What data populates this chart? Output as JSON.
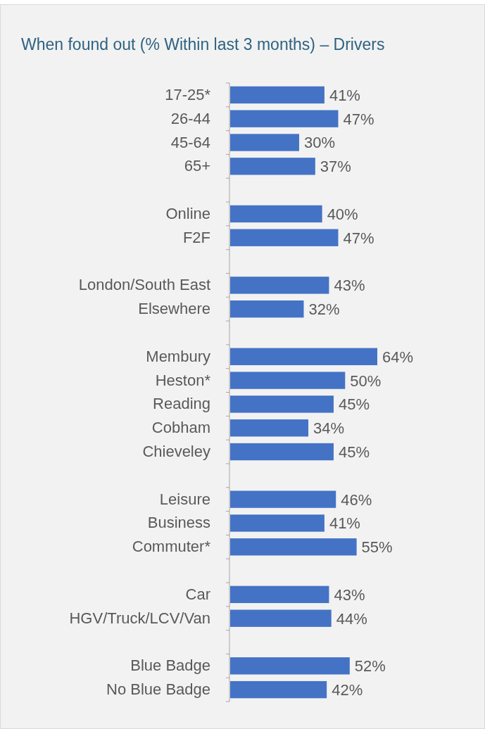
{
  "chart_data": {
    "type": "bar",
    "orientation": "horizontal",
    "title": "When found out (% Within last 3 months) – Drivers",
    "color": "#4472c4",
    "categories": [
      "17-25*",
      "26-44",
      "45-64",
      "65+",
      null,
      "Online",
      "F2F",
      null,
      "London/South East",
      "Elsewhere",
      null,
      "Membury",
      "Heston*",
      "Reading",
      "Cobham",
      "Chieveley",
      null,
      "Leisure",
      "Business",
      "Commuter*",
      null,
      "Car",
      "HGV/Truck/LCV/Van",
      null,
      "Blue Badge",
      "No Blue Badge"
    ],
    "values": [
      41,
      47,
      30,
      37,
      null,
      40,
      47,
      null,
      43,
      32,
      null,
      64,
      50,
      45,
      34,
      45,
      null,
      46,
      41,
      55,
      null,
      43,
      44,
      null,
      52,
      42
    ],
    "value_labels": [
      "41%",
      "47%",
      "30%",
      "37%",
      null,
      "40%",
      "47%",
      null,
      "43%",
      "32%",
      null,
      "64%",
      "50%",
      "45%",
      "34%",
      "45%",
      null,
      "46%",
      "41%",
      "55%",
      null,
      "43%",
      "44%",
      null,
      "52%",
      "42%"
    ]
  }
}
